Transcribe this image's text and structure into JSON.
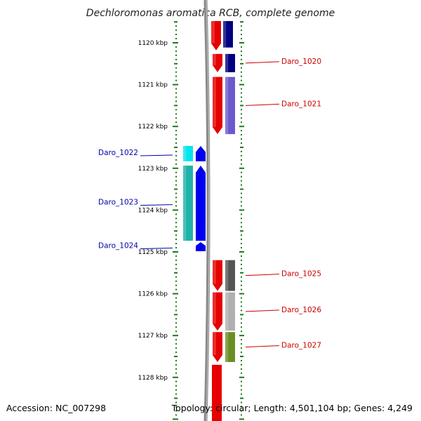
{
  "title": "Dechloromonas aromatica RCB, complete genome",
  "footer": {
    "accession": "Accession: NC_007298",
    "summary": "Topology: circular; Length: 4,501,104 bp; Genes: 4,249"
  },
  "colors": {
    "tick": "#1a7a1a",
    "backbone": "#888888",
    "forward_strand": "#e60000",
    "reverse_strand": "#0000ee",
    "label_forward": "#cc0000",
    "label_reverse": "#0000aa"
  },
  "kbp_ticks": [
    {
      "kbp": 1120,
      "label": "1120 kbp"
    },
    {
      "kbp": 1121,
      "label": "1121 kbp"
    },
    {
      "kbp": 1122,
      "label": "1122 kbp"
    },
    {
      "kbp": 1123,
      "label": "1123 kbp"
    },
    {
      "kbp": 1124,
      "label": "1124 kbp"
    },
    {
      "kbp": 1125,
      "label": "1125 kbp"
    },
    {
      "kbp": 1126,
      "label": "1126 kbp"
    },
    {
      "kbp": 1127,
      "label": "1127 kbp"
    },
    {
      "kbp": 1128,
      "label": "1128 kbp"
    }
  ],
  "genes": [
    {
      "name": "Daro_1020",
      "strand": "+",
      "start_kbp": 1120.25,
      "end_kbp": 1120.72,
      "cog_color": "#000080"
    },
    {
      "name": "Daro_1021",
      "strand": "+",
      "start_kbp": 1120.8,
      "end_kbp": 1122.2,
      "cog_color": "#6a5acd"
    },
    {
      "name": "Daro_1022",
      "strand": "-",
      "start_kbp": 1122.45,
      "end_kbp": 1122.85,
      "cog_color": "#00e5ee"
    },
    {
      "name": "Daro_1023",
      "strand": "-",
      "start_kbp": 1122.92,
      "end_kbp": 1124.75,
      "cog_color": "#20b2aa"
    },
    {
      "name": "Daro_1024",
      "strand": "-",
      "start_kbp": 1124.75,
      "end_kbp": 1125.0,
      "cog_color": null
    },
    {
      "name": "Daro_1025",
      "strand": "+",
      "start_kbp": 1125.18,
      "end_kbp": 1125.95,
      "cog_color": "#555555"
    },
    {
      "name": "Daro_1026",
      "strand": "+",
      "start_kbp": 1125.95,
      "end_kbp": 1126.9,
      "cog_color": "#b0b0b0"
    },
    {
      "name": "Daro_1027",
      "strand": "+",
      "start_kbp": 1126.9,
      "end_kbp": 1127.65,
      "cog_color": "#6b8e23"
    }
  ],
  "partial_genes": [
    {
      "strand": "+",
      "start_kbp": 1119.4,
      "end_kbp": 1120.18,
      "cog_color": "#000080"
    },
    {
      "strand": "+",
      "start_kbp": 1127.7,
      "end_kbp": 1129.2,
      "cog_color": null
    }
  ]
}
